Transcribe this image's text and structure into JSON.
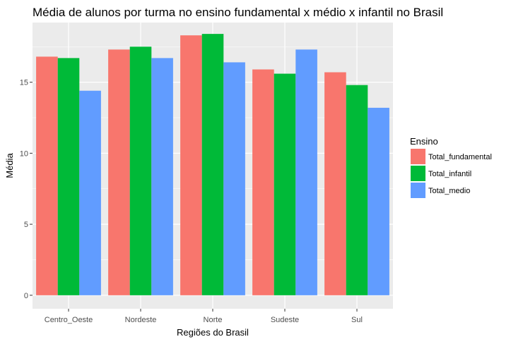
{
  "chart_data": {
    "type": "bar",
    "title": "Média de alunos por turma no ensino fundamental x médio x infantil no Brasil",
    "xlabel": "Regiões do Brasil",
    "ylabel": "Média",
    "categories": [
      "Centro_Oeste",
      "Nordeste",
      "Norte",
      "Sudeste",
      "Sul"
    ],
    "series": [
      {
        "name": "Total_fundamental",
        "color": "#F8766D",
        "values": [
          16.8,
          17.3,
          18.3,
          15.9,
          15.7
        ]
      },
      {
        "name": "Total_infantil",
        "color": "#00BA38",
        "values": [
          16.7,
          17.5,
          18.4,
          15.6,
          14.8
        ]
      },
      {
        "name": "Total_medio",
        "color": "#619CFF",
        "values": [
          14.4,
          16.7,
          16.4,
          17.3,
          13.2
        ]
      }
    ],
    "yticks": [
      0,
      5,
      10,
      15
    ],
    "ylim": [
      -0.95,
      19.2
    ],
    "grid": true,
    "panel_background": "#EBEBEB",
    "legend": {
      "title": "Ensino",
      "position": "right"
    }
  }
}
